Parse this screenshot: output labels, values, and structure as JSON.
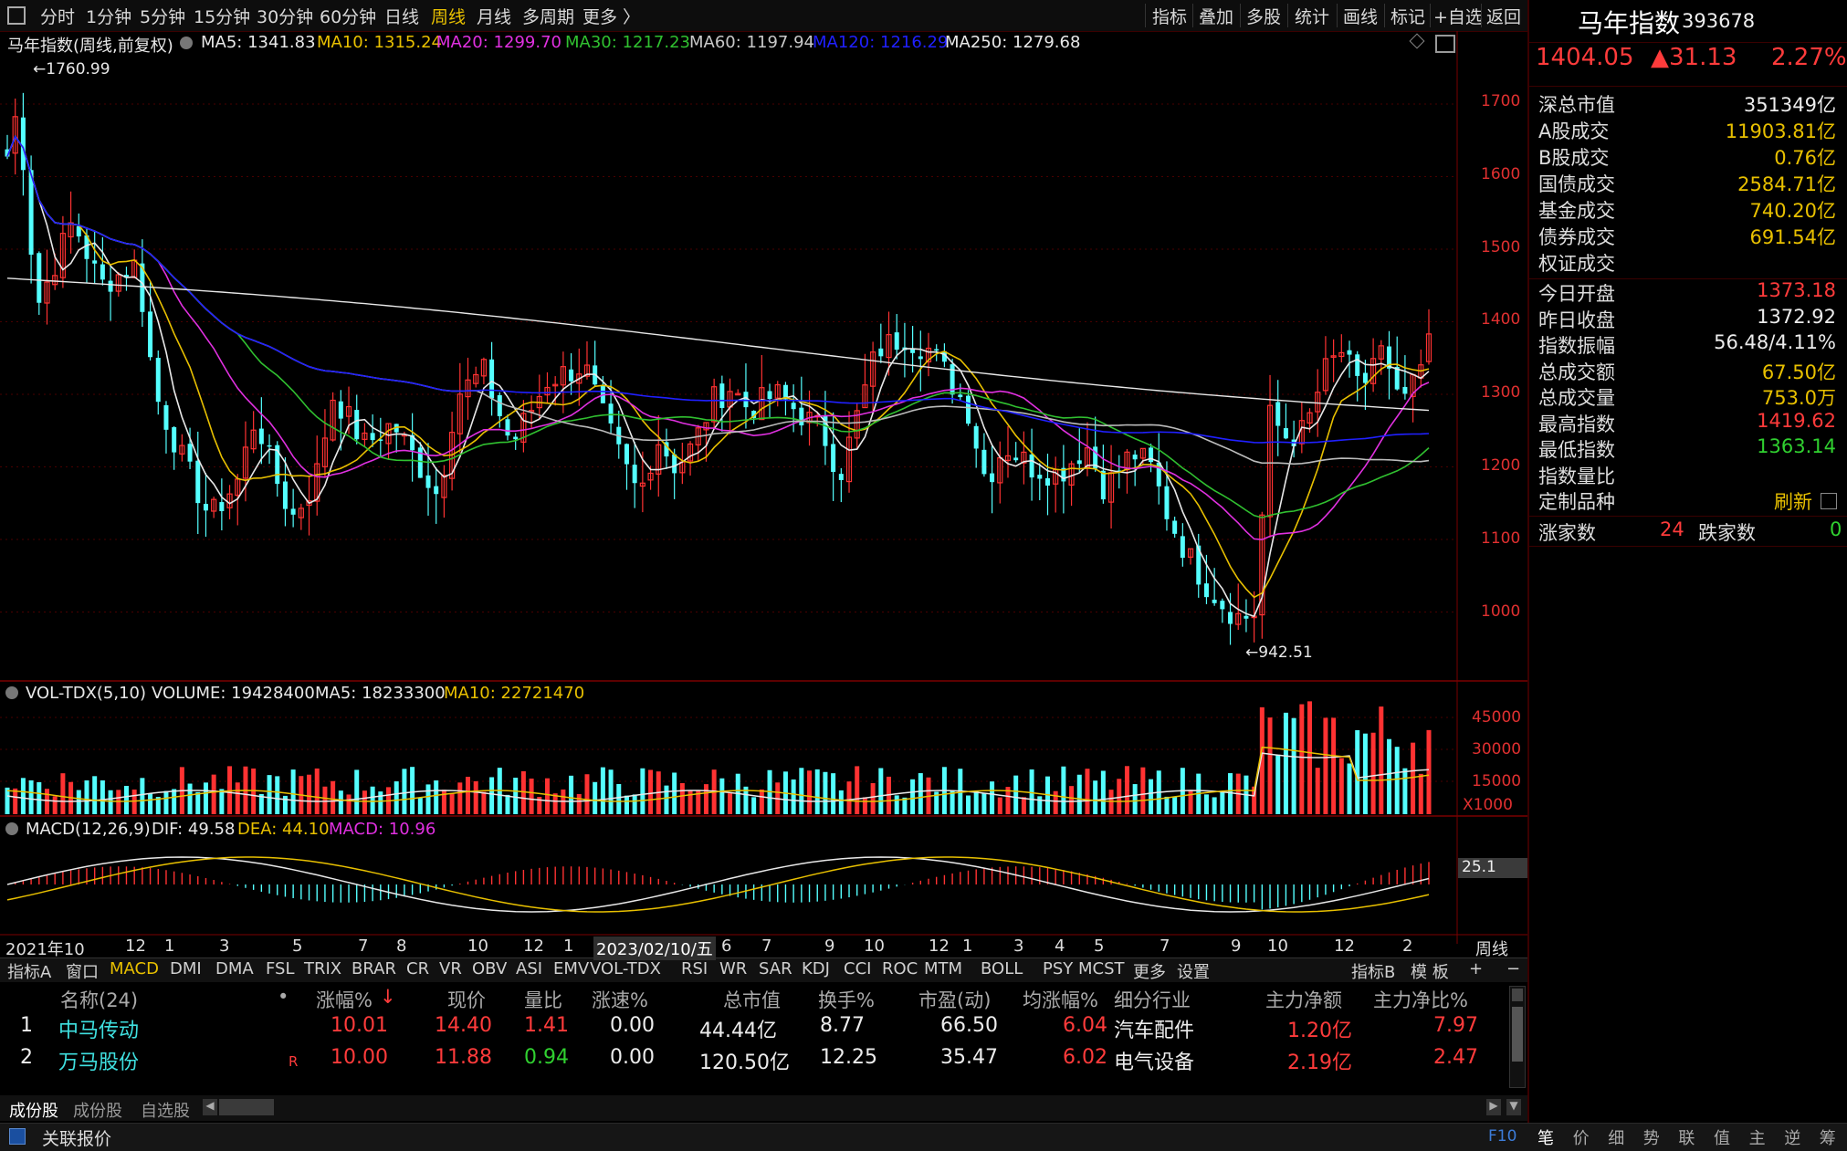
{
  "toolbar": {
    "periods": [
      "分时",
      "1分钟",
      "5分钟",
      "15分钟",
      "30分钟",
      "60分钟",
      "日线",
      "周线",
      "月线",
      "多周期",
      "更多 〉"
    ],
    "active_period": "周线",
    "tools": [
      "指标",
      "叠加",
      "多股",
      "统计",
      "画线",
      "标记",
      "+自选",
      "返回"
    ]
  },
  "main_chart": {
    "title": "马年指数(周线,前复权)",
    "ma_legend": [
      {
        "label": "MA5: 1341.83",
        "color": "#e8e8e8"
      },
      {
        "label": "MA10: 1315.24",
        "color": "#e8c000"
      },
      {
        "label": "MA20: 1299.70",
        "color": "#e030e0"
      },
      {
        "label": "MA30: 1217.23",
        "color": "#30c030"
      },
      {
        "label": "MA60: 1197.94",
        "color": "#c8c8c8"
      },
      {
        "label": "MA120: 1216.29",
        "color": "#2020ff"
      },
      {
        "label": "MA250: 1279.68",
        "color": "#e8e8e8"
      }
    ],
    "y_axis_labels": [
      "1700",
      "1600",
      "1500",
      "1400",
      "1300",
      "1200",
      "1100",
      "1000"
    ],
    "high_marker": "1760.99",
    "low_marker": "942.51"
  },
  "volume_chart": {
    "title": "VOL-TDX(5,10)",
    "volume": "VOLUME: 19428400",
    "ma5": "MA5: 18233300",
    "ma10": "MA10: 22721470",
    "axis_labels": [
      "45000",
      "30000",
      "15000",
      "X1000"
    ]
  },
  "macd_chart": {
    "title": "MACD(12,26,9)",
    "dif": "DIF: 49.58",
    "dea": "DEA: 44.10",
    "macd": "MACD: 10.96",
    "axis_value": "25.1"
  },
  "x_axis": {
    "labels": [
      "2021年10",
      "12",
      "1",
      "3",
      "5",
      "7",
      "8",
      "10",
      "12",
      "1",
      "2023/02/10/五",
      "6",
      "7",
      "9",
      "10",
      "12",
      "1",
      "3",
      "4",
      "5",
      "7",
      "9",
      "10",
      "12",
      "2"
    ],
    "period": "周线"
  },
  "indicator_tabs": [
    "指标A",
    "窗口",
    "MACD",
    "DMI",
    "DMA",
    "FSL",
    "TRIX",
    "BRAR",
    "CR",
    "VR",
    "OBV",
    "ASI",
    "EMV",
    "VOL-TDX",
    "RSI",
    "WR",
    "SAR",
    "KDJ",
    "CCI",
    "ROC",
    "MTM",
    "BOLL",
    "PSY",
    "MCST",
    "更多",
    "设置"
  ],
  "indicator_active": "MACD",
  "indicator_right": [
    "指标B",
    "模 板",
    "+",
    "−"
  ],
  "table": {
    "headers": [
      "名称(24)",
      "•",
      "涨幅%",
      "现价",
      "量比",
      "涨速%",
      "总市值",
      "换手%",
      "市盈(动)",
      "均涨幅%",
      "细分行业",
      "主力净额",
      "主力净比%"
    ],
    "sort_arrow": "↓",
    "rows": [
      {
        "idx": "1",
        "name": "中马传动",
        "flag": "",
        "chg": "10.01",
        "price": "14.40",
        "volratio": "1.41",
        "speed": "0.00",
        "mcap": "44.44亿",
        "turnover": "8.77",
        "pe": "66.50",
        "avgchg": "6.04",
        "industry": "汽车配件",
        "netflow": "1.20亿",
        "netratio": "7.97"
      },
      {
        "idx": "2",
        "name": "万马股份",
        "flag": "R",
        "chg": "10.00",
        "price": "11.88",
        "volratio": "0.94",
        "speed": "0.00",
        "mcap": "120.50亿",
        "turnover": "12.25",
        "pe": "35.47",
        "avgchg": "6.02",
        "industry": "电气设备",
        "netflow": "2.19亿",
        "netratio": "2.47"
      }
    ]
  },
  "bottom_tabs": [
    "成份股",
    "成份股",
    "自选股"
  ],
  "status": {
    "label": "关联报价",
    "f10": "F10"
  },
  "right_panel": {
    "name": "马年指数",
    "code": "393678",
    "price": "1404.05",
    "change": "▲31.13",
    "change_pct": "2.27%",
    "stats_a": [
      {
        "label": "深总市值",
        "value": "351349亿",
        "color": "#ececec"
      },
      {
        "label": "A股成交",
        "value": "11903.81亿",
        "color": "#e8c000"
      },
      {
        "label": "B股成交",
        "value": "0.76亿",
        "color": "#e8c000"
      },
      {
        "label": "国债成交",
        "value": "2584.71亿",
        "color": "#e8c000"
      },
      {
        "label": "基金成交",
        "value": "740.20亿",
        "color": "#e8c000"
      },
      {
        "label": "债券成交",
        "value": "691.54亿",
        "color": "#e8c000"
      },
      {
        "label": "权证成交",
        "value": "",
        "color": "#e8c000"
      }
    ],
    "stats_b": [
      {
        "label": "今日开盘",
        "value": "1373.18",
        "color": "#ff3b3b"
      },
      {
        "label": "昨日收盘",
        "value": "1372.92",
        "color": "#ececec"
      },
      {
        "label": "指数振幅",
        "value": "56.48/4.11%",
        "color": "#ececec"
      },
      {
        "label": "总成交额",
        "value": "67.50亿",
        "color": "#e8c000"
      },
      {
        "label": "总成交量",
        "value": "753.0万",
        "color": "#e8c000"
      },
      {
        "label": "最高指数",
        "value": "1419.62",
        "color": "#ff3b3b"
      },
      {
        "label": "最低指数",
        "value": "1363.14",
        "color": "#30d030"
      },
      {
        "label": "指数量比",
        "value": "",
        "color": "#ececec"
      },
      {
        "label": "定制品种",
        "value": "刷新",
        "color": "#e8c000"
      }
    ],
    "up_label": "涨家数",
    "up_value": "24",
    "down_label": "跌家数",
    "down_value": "0",
    "bottom_tabs": [
      "笔",
      "价",
      "细",
      "势",
      "联",
      "值",
      "主",
      "逆",
      "筹"
    ]
  }
}
